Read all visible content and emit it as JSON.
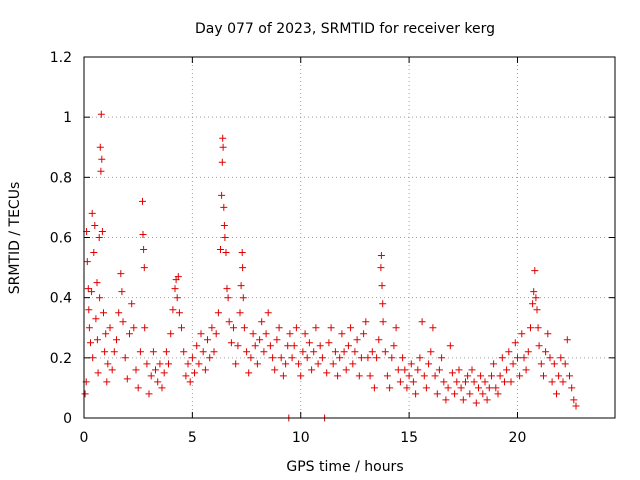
{
  "chart_data": {
    "type": "scatter",
    "title": "Day 077 of 2023, SRMTID for receiver kerg",
    "xlabel": "GPS time / hours",
    "ylabel": "SRMTID / TECUs",
    "xlim": [
      0,
      24.5
    ],
    "ylim": [
      0,
      1.2
    ],
    "xticks": [
      0,
      5,
      10,
      15,
      20
    ],
    "xtick_labels": [
      "0",
      "5",
      "10",
      "15",
      "20"
    ],
    "yticks": [
      0,
      0.2,
      0.4,
      0.6,
      0.8,
      1,
      1.2
    ],
    "ytick_labels": [
      "0",
      "0.2",
      "0.4",
      "0.6",
      "0.8",
      "1",
      "1.2"
    ],
    "grid": true,
    "marker": "+",
    "color": "#e00000",
    "series": [
      {
        "name": "kerg",
        "points": [
          [
            0.05,
            0.08
          ],
          [
            0.1,
            0.12
          ],
          [
            0.12,
            0.62
          ],
          [
            0.15,
            0.52
          ],
          [
            0.2,
            0.43
          ],
          [
            0.22,
            0.36
          ],
          [
            0.25,
            0.3
          ],
          [
            0.3,
            0.25
          ],
          [
            0.35,
            0.42
          ],
          [
            0.38,
            0.68
          ],
          [
            0.4,
            0.2
          ],
          [
            0.45,
            0.55
          ],
          [
            0.5,
            0.64
          ],
          [
            0.55,
            0.33
          ],
          [
            0.6,
            0.45
          ],
          [
            0.62,
            0.26
          ],
          [
            0.65,
            0.15
          ],
          [
            0.7,
            0.6
          ],
          [
            0.72,
            0.4
          ],
          [
            0.75,
            0.9
          ],
          [
            0.78,
            0.82
          ],
          [
            0.8,
            1.01
          ],
          [
            0.82,
            0.86
          ],
          [
            0.85,
            0.62
          ],
          [
            0.9,
            0.35
          ],
          [
            0.95,
            0.22
          ],
          [
            1.0,
            0.28
          ],
          [
            1.05,
            0.12
          ],
          [
            1.1,
            0.18
          ],
          [
            1.2,
            0.3
          ],
          [
            1.3,
            0.16
          ],
          [
            1.4,
            0.22
          ],
          [
            1.5,
            0.26
          ],
          [
            1.6,
            0.35
          ],
          [
            1.7,
            0.48
          ],
          [
            1.75,
            0.42
          ],
          [
            1.8,
            0.32
          ],
          [
            1.9,
            0.2
          ],
          [
            2.0,
            0.13
          ],
          [
            2.1,
            0.28
          ],
          [
            2.2,
            0.38
          ],
          [
            2.3,
            0.3
          ],
          [
            2.4,
            0.16
          ],
          [
            2.5,
            0.1
          ],
          [
            2.6,
            0.22
          ],
          [
            2.7,
            0.72
          ],
          [
            2.72,
            0.61
          ],
          [
            2.75,
            0.56
          ],
          [
            2.78,
            0.5
          ],
          [
            2.8,
            0.3
          ],
          [
            2.9,
            0.18
          ],
          [
            3.0,
            0.08
          ],
          [
            3.1,
            0.14
          ],
          [
            3.2,
            0.22
          ],
          [
            3.3,
            0.16
          ],
          [
            3.4,
            0.12
          ],
          [
            3.5,
            0.18
          ],
          [
            3.6,
            0.1
          ],
          [
            3.7,
            0.15
          ],
          [
            3.8,
            0.22
          ],
          [
            3.9,
            0.18
          ],
          [
            4.0,
            0.28
          ],
          [
            4.1,
            0.36
          ],
          [
            4.2,
            0.43
          ],
          [
            4.25,
            0.46
          ],
          [
            4.3,
            0.4
          ],
          [
            4.35,
            0.47
          ],
          [
            4.4,
            0.35
          ],
          [
            4.5,
            0.3
          ],
          [
            4.6,
            0.22
          ],
          [
            4.7,
            0.14
          ],
          [
            4.8,
            0.18
          ],
          [
            4.9,
            0.12
          ],
          [
            5.0,
            0.2
          ],
          [
            5.1,
            0.15
          ],
          [
            5.2,
            0.24
          ],
          [
            5.3,
            0.18
          ],
          [
            5.4,
            0.28
          ],
          [
            5.5,
            0.22
          ],
          [
            5.6,
            0.16
          ],
          [
            5.7,
            0.26
          ],
          [
            5.8,
            0.2
          ],
          [
            5.9,
            0.3
          ],
          [
            6.0,
            0.22
          ],
          [
            6.1,
            0.28
          ],
          [
            6.2,
            0.35
          ],
          [
            6.3,
            0.56
          ],
          [
            6.35,
            0.74
          ],
          [
            6.38,
            0.85
          ],
          [
            6.4,
            0.93
          ],
          [
            6.42,
            0.9
          ],
          [
            6.45,
            0.7
          ],
          [
            6.48,
            0.64
          ],
          [
            6.5,
            0.6
          ],
          [
            6.55,
            0.55
          ],
          [
            6.6,
            0.43
          ],
          [
            6.65,
            0.4
          ],
          [
            6.7,
            0.32
          ],
          [
            6.8,
            0.25
          ],
          [
            6.9,
            0.3
          ],
          [
            7.0,
            0.18
          ],
          [
            7.1,
            0.24
          ],
          [
            7.2,
            0.35
          ],
          [
            7.25,
            0.44
          ],
          [
            7.3,
            0.55
          ],
          [
            7.32,
            0.5
          ],
          [
            7.35,
            0.4
          ],
          [
            7.4,
            0.3
          ],
          [
            7.5,
            0.22
          ],
          [
            7.6,
            0.15
          ],
          [
            7.7,
            0.2
          ],
          [
            7.8,
            0.28
          ],
          [
            7.9,
            0.24
          ],
          [
            8.0,
            0.18
          ],
          [
            8.1,
            0.26
          ],
          [
            8.2,
            0.32
          ],
          [
            8.3,
            0.22
          ],
          [
            8.4,
            0.28
          ],
          [
            8.5,
            0.35
          ],
          [
            8.6,
            0.24
          ],
          [
            8.7,
            0.2
          ],
          [
            8.8,
            0.16
          ],
          [
            8.9,
            0.26
          ],
          [
            9.0,
            0.3
          ],
          [
            9.1,
            0.2
          ],
          [
            9.2,
            0.14
          ],
          [
            9.3,
            0.18
          ],
          [
            9.4,
            0.24
          ],
          [
            9.45,
            0.0
          ],
          [
            9.5,
            0.28
          ],
          [
            9.6,
            0.2
          ],
          [
            9.7,
            0.24
          ],
          [
            9.8,
            0.3
          ],
          [
            9.9,
            0.18
          ],
          [
            10.0,
            0.14
          ],
          [
            10.1,
            0.22
          ],
          [
            10.2,
            0.28
          ],
          [
            10.3,
            0.2
          ],
          [
            10.4,
            0.25
          ],
          [
            10.5,
            0.16
          ],
          [
            10.6,
            0.22
          ],
          [
            10.7,
            0.3
          ],
          [
            10.8,
            0.18
          ],
          [
            10.9,
            0.24
          ],
          [
            11.0,
            0.2
          ],
          [
            11.1,
            0.0
          ],
          [
            11.2,
            0.15
          ],
          [
            11.3,
            0.25
          ],
          [
            11.4,
            0.3
          ],
          [
            11.5,
            0.18
          ],
          [
            11.6,
            0.22
          ],
          [
            11.7,
            0.14
          ],
          [
            11.8,
            0.2
          ],
          [
            11.9,
            0.28
          ],
          [
            12.0,
            0.22
          ],
          [
            12.1,
            0.16
          ],
          [
            12.2,
            0.24
          ],
          [
            12.3,
            0.3
          ],
          [
            12.4,
            0.18
          ],
          [
            12.5,
            0.22
          ],
          [
            12.6,
            0.26
          ],
          [
            12.7,
            0.14
          ],
          [
            12.8,
            0.2
          ],
          [
            12.9,
            0.28
          ],
          [
            13.0,
            0.32
          ],
          [
            13.1,
            0.2
          ],
          [
            13.2,
            0.14
          ],
          [
            13.3,
            0.22
          ],
          [
            13.4,
            0.1
          ],
          [
            13.5,
            0.2
          ],
          [
            13.6,
            0.26
          ],
          [
            13.7,
            0.5
          ],
          [
            13.72,
            0.54
          ],
          [
            13.75,
            0.44
          ],
          [
            13.78,
            0.38
          ],
          [
            13.8,
            0.32
          ],
          [
            13.9,
            0.22
          ],
          [
            14.0,
            0.14
          ],
          [
            14.1,
            0.1
          ],
          [
            14.2,
            0.2
          ],
          [
            14.3,
            0.24
          ],
          [
            14.4,
            0.3
          ],
          [
            14.5,
            0.16
          ],
          [
            14.6,
            0.12
          ],
          [
            14.7,
            0.2
          ],
          [
            14.8,
            0.16
          ],
          [
            14.9,
            0.1
          ],
          [
            15.0,
            0.14
          ],
          [
            15.1,
            0.18
          ],
          [
            15.2,
            0.12
          ],
          [
            15.3,
            0.08
          ],
          [
            15.4,
            0.16
          ],
          [
            15.5,
            0.2
          ],
          [
            15.6,
            0.32
          ],
          [
            15.7,
            0.14
          ],
          [
            15.8,
            0.1
          ],
          [
            15.9,
            0.18
          ],
          [
            16.0,
            0.22
          ],
          [
            16.1,
            0.3
          ],
          [
            16.2,
            0.14
          ],
          [
            16.3,
            0.08
          ],
          [
            16.4,
            0.16
          ],
          [
            16.5,
            0.2
          ],
          [
            16.6,
            0.12
          ],
          [
            16.7,
            0.06
          ],
          [
            16.8,
            0.1
          ],
          [
            16.9,
            0.24
          ],
          [
            17.0,
            0.15
          ],
          [
            17.1,
            0.08
          ],
          [
            17.2,
            0.12
          ],
          [
            17.3,
            0.16
          ],
          [
            17.4,
            0.1
          ],
          [
            17.5,
            0.06
          ],
          [
            17.6,
            0.12
          ],
          [
            17.7,
            0.14
          ],
          [
            17.8,
            0.08
          ],
          [
            17.9,
            0.16
          ],
          [
            18.0,
            0.12
          ],
          [
            18.1,
            0.05
          ],
          [
            18.2,
            0.1
          ],
          [
            18.3,
            0.14
          ],
          [
            18.4,
            0.08
          ],
          [
            18.5,
            0.12
          ],
          [
            18.6,
            0.06
          ],
          [
            18.7,
            0.1
          ],
          [
            18.8,
            0.14
          ],
          [
            18.9,
            0.18
          ],
          [
            19.0,
            0.1
          ],
          [
            19.1,
            0.08
          ],
          [
            19.2,
            0.14
          ],
          [
            19.3,
            0.2
          ],
          [
            19.4,
            0.12
          ],
          [
            19.5,
            0.16
          ],
          [
            19.6,
            0.22
          ],
          [
            19.7,
            0.12
          ],
          [
            19.8,
            0.18
          ],
          [
            19.9,
            0.25
          ],
          [
            20.0,
            0.2
          ],
          [
            20.1,
            0.14
          ],
          [
            20.2,
            0.28
          ],
          [
            20.3,
            0.2
          ],
          [
            20.4,
            0.16
          ],
          [
            20.5,
            0.22
          ],
          [
            20.6,
            0.3
          ],
          [
            20.7,
            0.38
          ],
          [
            20.75,
            0.42
          ],
          [
            20.8,
            0.49
          ],
          [
            20.85,
            0.4
          ],
          [
            20.9,
            0.36
          ],
          [
            20.95,
            0.3
          ],
          [
            21.0,
            0.24
          ],
          [
            21.1,
            0.18
          ],
          [
            21.2,
            0.14
          ],
          [
            21.3,
            0.22
          ],
          [
            21.4,
            0.28
          ],
          [
            21.5,
            0.2
          ],
          [
            21.6,
            0.12
          ],
          [
            21.7,
            0.18
          ],
          [
            21.8,
            0.08
          ],
          [
            21.9,
            0.14
          ],
          [
            22.0,
            0.2
          ],
          [
            22.1,
            0.12
          ],
          [
            22.2,
            0.18
          ],
          [
            22.3,
            0.26
          ],
          [
            22.4,
            0.14
          ],
          [
            22.5,
            0.1
          ],
          [
            22.6,
            0.06
          ],
          [
            22.7,
            0.04
          ]
        ]
      }
    ]
  }
}
